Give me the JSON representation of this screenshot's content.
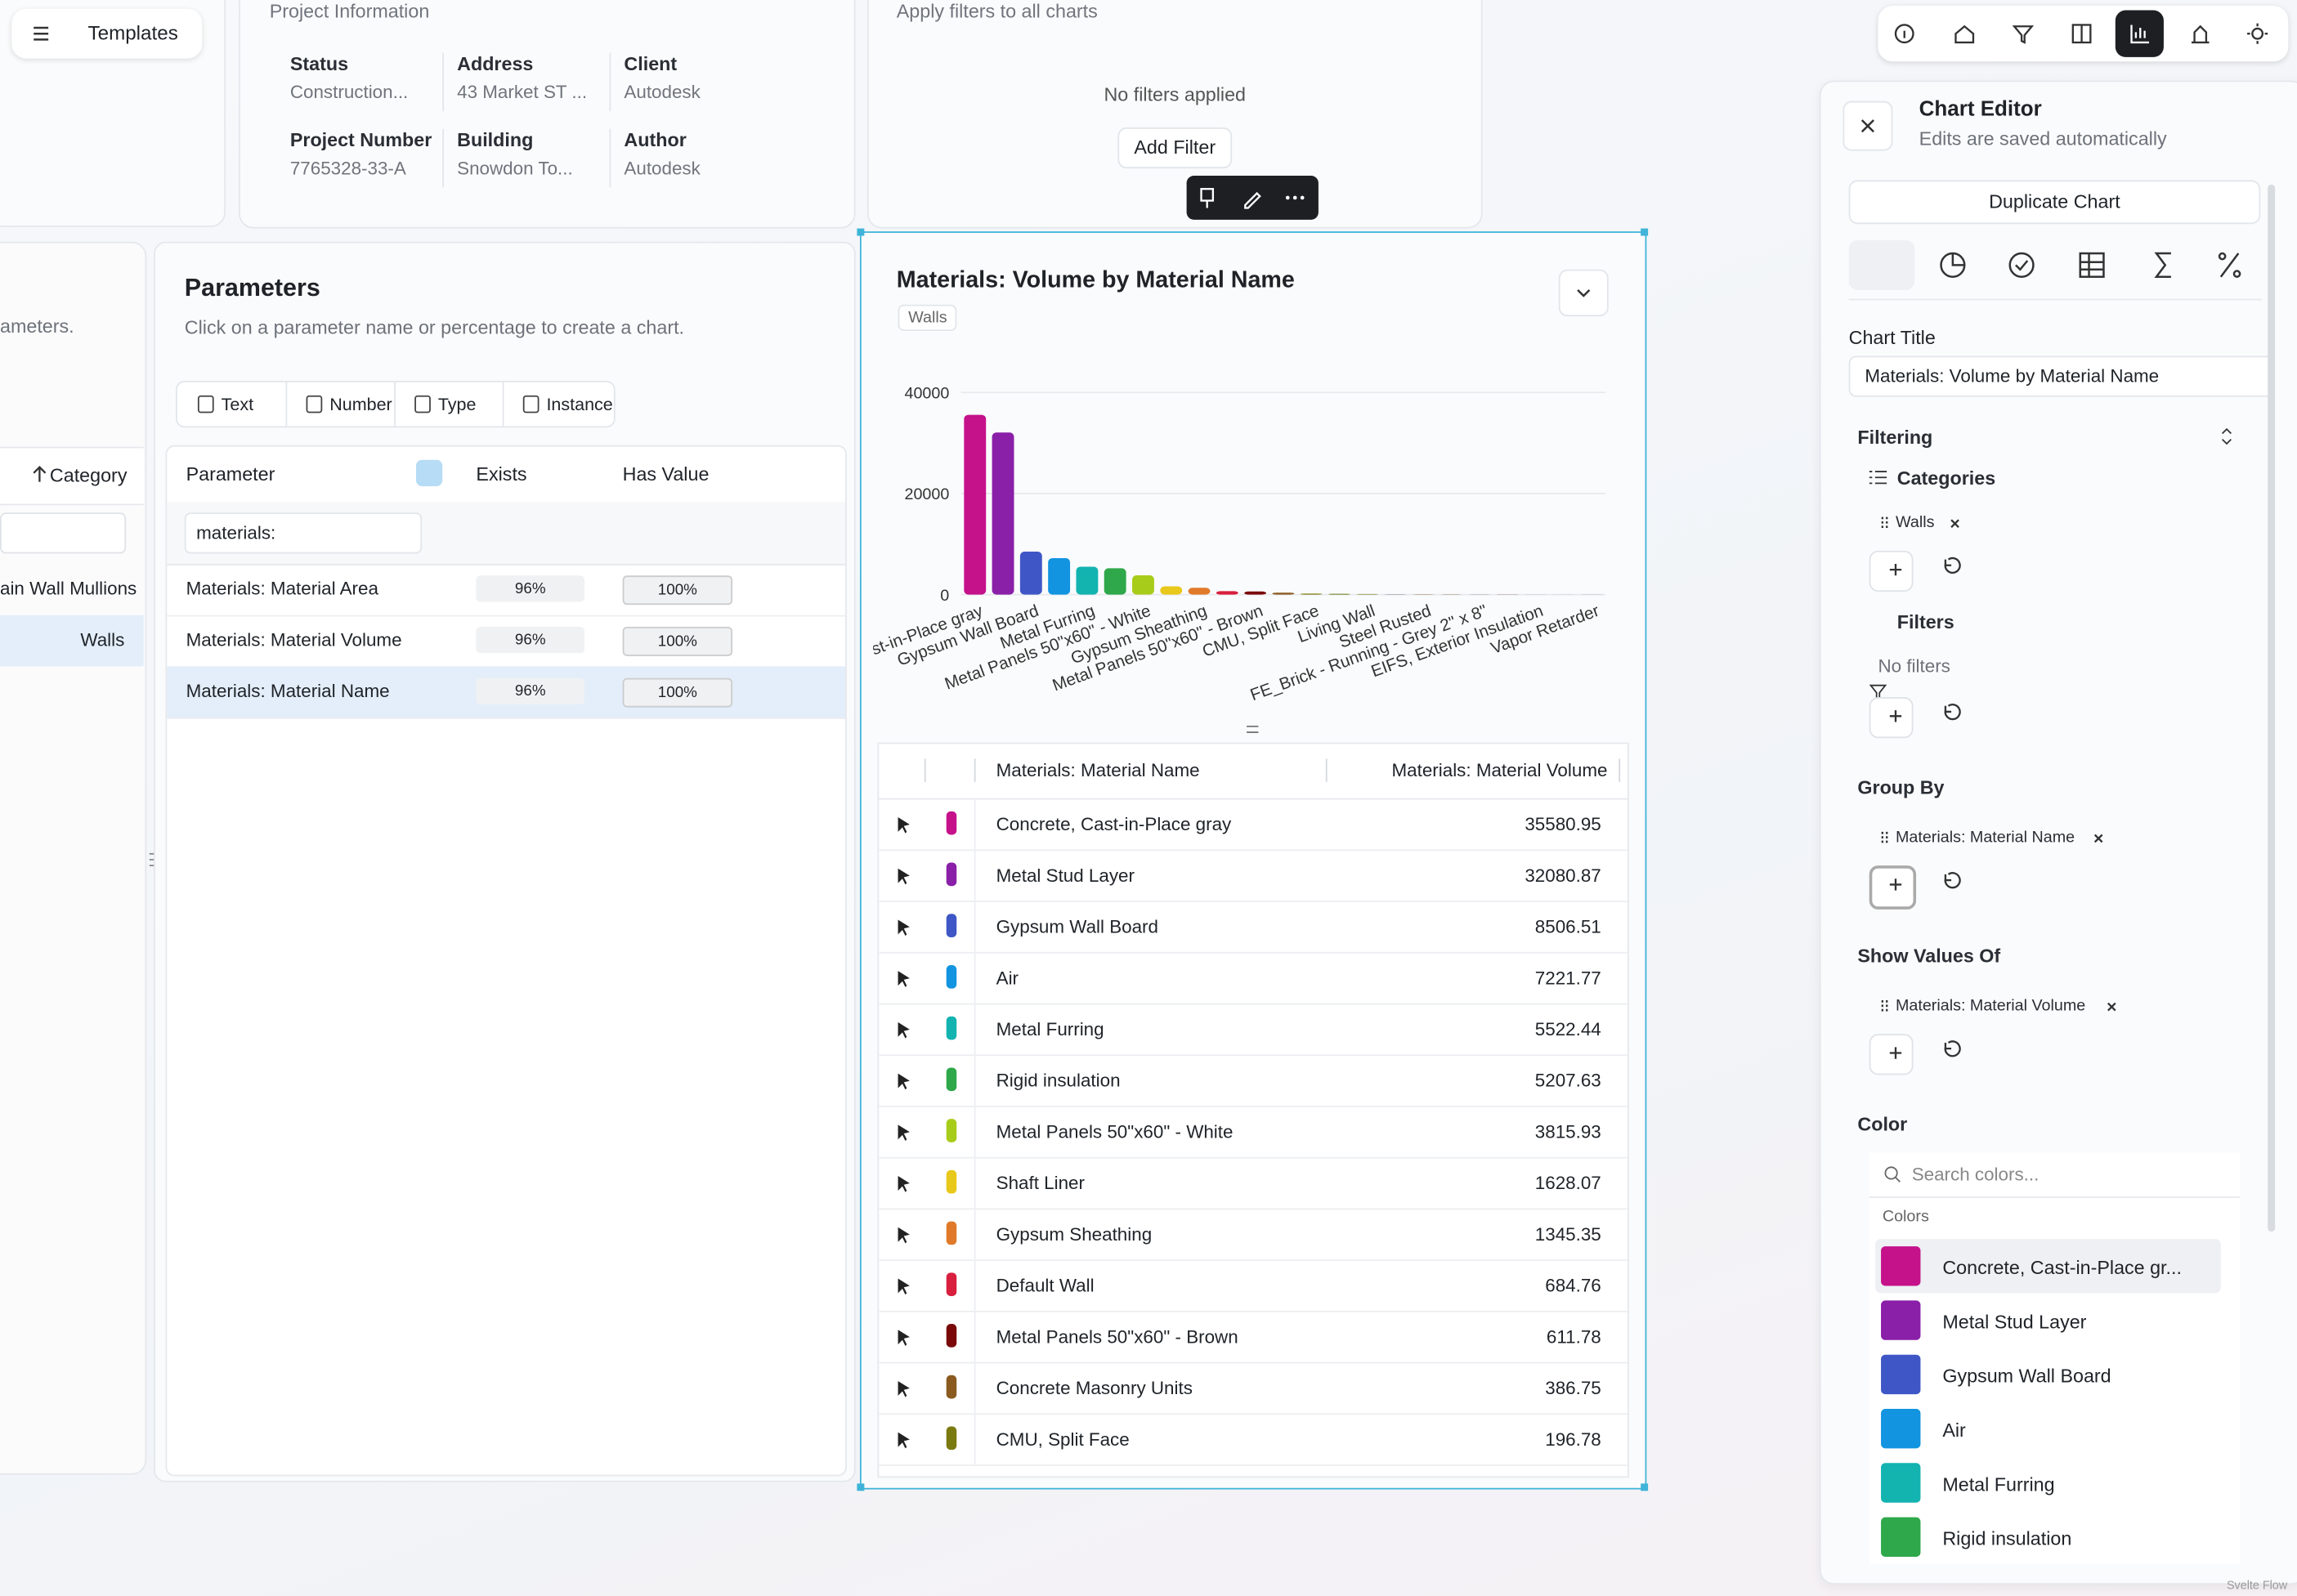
{
  "header": {
    "templates": "Templates"
  },
  "project_info": {
    "title": "Project Information",
    "fields": [
      {
        "label": "Status",
        "value": "Construction..."
      },
      {
        "label": "Address",
        "value": "43 Market ST ..."
      },
      {
        "label": "Client",
        "value": "Autodesk"
      },
      {
        "label": "Project Number",
        "value": "7765328-33-A"
      },
      {
        "label": "Building",
        "value": "Snowdon To..."
      },
      {
        "label": "Author",
        "value": "Autodesk"
      }
    ]
  },
  "filters_card": {
    "subtitle": "Apply filters to all charts",
    "empty": "No filters applied",
    "button": "Add Filter"
  },
  "left_panel": {
    "text": "ameters.",
    "column": "Category",
    "rows": [
      "ain Wall Mullions",
      "Walls"
    ]
  },
  "parameters": {
    "title": "Parameters",
    "subtitle": "Click on a parameter name or percentage to create a chart.",
    "tabs": [
      "Text",
      "Number",
      "Type",
      "Instance"
    ],
    "columns": [
      "Parameter",
      "Exists",
      "Has Value"
    ],
    "search": "materials:",
    "rows": [
      [
        "Materials: Material Area",
        "96%",
        "100%"
      ],
      [
        "Materials: Material Volume",
        "96%",
        "100%"
      ],
      [
        "Materials: Material Name",
        "96%",
        "100%"
      ]
    ]
  },
  "chart_data": {
    "type": "bar",
    "title": "Materials: Volume by Material Name",
    "tag": "Walls",
    "categories": [
      "st-in-Place gray",
      null,
      "Gypsum Wall Board",
      null,
      "Metal Furring",
      null,
      "Metal Panels 50\"x60\" - White",
      null,
      "Gypsum Sheathing",
      null,
      "Metal Panels 50\"x60\" - Brown",
      null,
      "CMU, Split Face",
      null,
      "Living Wall",
      null,
      "Steel Rusted",
      null,
      "FE_Brick - Running - Grey 2\" x 8\"",
      null,
      "EIFS, Exterior Insulation",
      null,
      "Vapor Retarder"
    ],
    "values": [
      35580.95,
      32080.87,
      8506.51,
      7221.77,
      5522.44,
      5207.63,
      3815.93,
      1628.07,
      1345.35,
      684.76,
      611.78,
      386.75,
      196.78,
      150,
      110,
      90,
      70,
      50,
      40,
      30,
      20,
      15,
      10
    ],
    "colors": [
      "#c5118a",
      "#8a1fa8",
      "#3f57c6",
      "#1294e0",
      "#13b3b0",
      "#2ea84a",
      "#a8cc1a",
      "#e8c81a",
      "#e07a2a",
      "#d81f3e",
      "#7a0a0a",
      "#8a5a1f",
      "#7a7a10",
      "#6b7a12",
      "#8a8a3a",
      "#9a9aa0",
      "#a08060",
      "#8a6a4a",
      "#6a6a6a",
      "#7a4a3a",
      "#5a6a7a",
      "#9a7a9a",
      "#4a5a4a"
    ],
    "ylim": [
      0,
      40000
    ],
    "yticks": [
      0,
      20000,
      40000
    ],
    "grid": true
  },
  "chart_table": {
    "columns": [
      "Materials: Material Name",
      "Materials: Material Volume"
    ],
    "rows": [
      {
        "name": "Concrete, Cast-in-Place gray",
        "value": 35580.95,
        "color": "#c5118a"
      },
      {
        "name": "Metal Stud Layer",
        "value": 32080.87,
        "color": "#8a1fa8"
      },
      {
        "name": "Gypsum Wall Board",
        "value": 8506.51,
        "color": "#3f57c6"
      },
      {
        "name": "Air",
        "value": 7221.77,
        "color": "#1294e0"
      },
      {
        "name": "Metal Furring",
        "value": 5522.44,
        "color": "#13b3b0"
      },
      {
        "name": "Rigid insulation",
        "value": 5207.63,
        "color": "#2ea84a"
      },
      {
        "name": "Metal Panels 50\"x60\" - White",
        "value": 3815.93,
        "color": "#a8cc1a"
      },
      {
        "name": "Shaft Liner",
        "value": 1628.07,
        "color": "#e8c81a"
      },
      {
        "name": "Gypsum Sheathing",
        "value": 1345.35,
        "color": "#e07a2a"
      },
      {
        "name": "Default Wall",
        "value": 684.76,
        "color": "#d81f3e"
      },
      {
        "name": "Metal Panels 50\"x60\" - Brown",
        "value": 611.78,
        "color": "#7a0a0a"
      },
      {
        "name": "Concrete Masonry Units",
        "value": 386.75,
        "color": "#8a5a1f"
      },
      {
        "name": "CMU, Split Face",
        "value": 196.78,
        "color": "#7a7a10"
      }
    ]
  },
  "editor": {
    "title": "Chart Editor",
    "subtitle": "Edits are saved automatically",
    "duplicate": "Duplicate Chart",
    "chart_title_label": "Chart Title",
    "chart_title_value": "Materials: Volume by Material Name",
    "filtering": "Filtering",
    "categories_label": "Categories",
    "category_chip": "Walls",
    "filters_label": "Filters",
    "no_filters": "No filters",
    "group_by": "Group By",
    "group_chip": "Materials: Material Name",
    "show_values": "Show Values Of",
    "values_chip": "Materials: Material Volume",
    "color": "Color",
    "search_placeholder": "Search colors...",
    "colors_label": "Colors",
    "color_items": [
      {
        "name": "Concrete, Cast-in-Place gr...",
        "color": "#c5118a"
      },
      {
        "name": "Metal Stud Layer",
        "color": "#8a1fa8"
      },
      {
        "name": "Gypsum Wall Board",
        "color": "#3f57c6"
      },
      {
        "name": "Air",
        "color": "#1294e0"
      },
      {
        "name": "Metal Furring",
        "color": "#13b3b0"
      },
      {
        "name": "Rigid insulation",
        "color": "#2ea84a"
      }
    ]
  },
  "watermark": "Svelte Flow"
}
